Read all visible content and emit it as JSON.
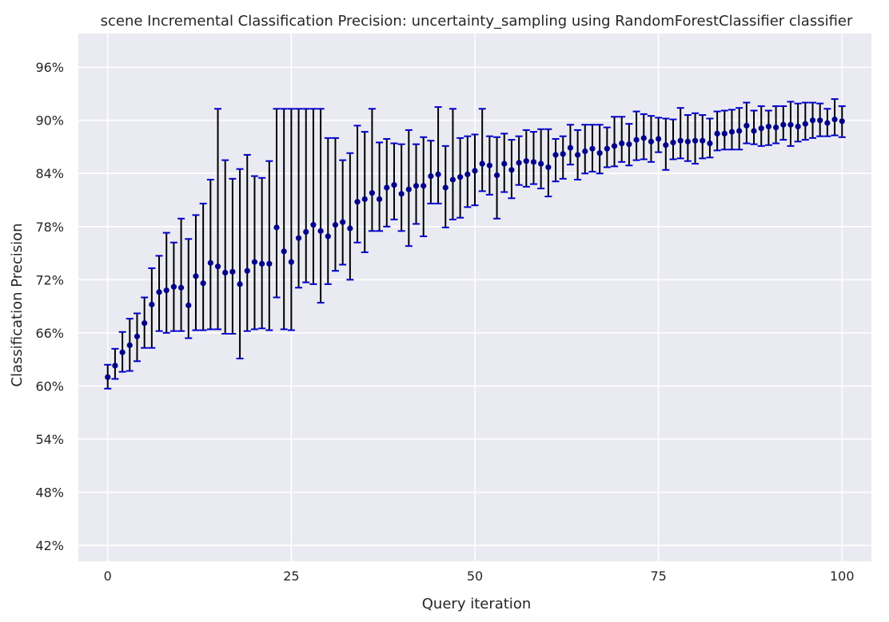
{
  "chart_data": {
    "type": "scatter",
    "title": "scene Incremental Classification Precision: uncertainty_sampling using RandomForestClassifier classifier",
    "xlabel": "Query iteration",
    "ylabel": "Classification Precision",
    "xlim": [
      -4,
      104
    ],
    "ylim": [
      40.2,
      99.8
    ],
    "xticks": [
      0,
      25,
      50,
      75,
      100
    ],
    "xtick_labels": [
      "0",
      "25",
      "50",
      "75",
      "100"
    ],
    "yticks": [
      42,
      48,
      54,
      60,
      66,
      72,
      78,
      84,
      90,
      96
    ],
    "ytick_labels": [
      "42%",
      "48%",
      "54%",
      "60%",
      "66%",
      "72%",
      "78%",
      "84%",
      "90%",
      "96%"
    ],
    "grid": true,
    "background": "#eaeaf2",
    "grid_color": "#ffffff",
    "marker_color": "#00008b",
    "errorbar_color": "#000000",
    "cap_color": "#0000cc",
    "x": [
      0,
      1,
      2,
      3,
      4,
      5,
      6,
      7,
      8,
      9,
      10,
      11,
      12,
      13,
      14,
      15,
      16,
      17,
      18,
      19,
      20,
      21,
      22,
      23,
      24,
      25,
      26,
      27,
      28,
      29,
      30,
      31,
      32,
      33,
      34,
      35,
      36,
      37,
      38,
      39,
      40,
      41,
      42,
      43,
      44,
      45,
      46,
      47,
      48,
      49,
      50,
      51,
      52,
      53,
      54,
      55,
      56,
      57,
      58,
      59,
      60,
      61,
      62,
      63,
      64,
      65,
      66,
      67,
      68,
      69,
      70,
      71,
      72,
      73,
      74,
      75,
      76,
      77,
      78,
      79,
      80,
      81,
      82,
      83,
      84,
      85,
      86,
      87,
      88,
      89,
      90,
      91,
      92,
      93,
      94,
      95,
      96,
      97,
      98,
      99,
      100
    ],
    "y": [
      61.0,
      62.3,
      63.8,
      64.6,
      65.6,
      67.1,
      69.2,
      70.6,
      70.8,
      71.2,
      71.1,
      69.1,
      72.4,
      71.6,
      73.9,
      73.5,
      72.8,
      72.9,
      71.5,
      73.0,
      74.0,
      73.8,
      73.8,
      77.9,
      75.2,
      74.0,
      76.7,
      77.4,
      78.2,
      77.5,
      76.9,
      78.2,
      78.5,
      77.8,
      80.8,
      81.1,
      81.8,
      81.1,
      82.4,
      82.7,
      81.7,
      82.2,
      82.6,
      82.6,
      83.7,
      83.9,
      82.4,
      83.3,
      83.6,
      83.9,
      84.3,
      85.1,
      84.9,
      83.8,
      85.1,
      84.4,
      85.2,
      85.4,
      85.3,
      85.1,
      84.7,
      86.1,
      86.2,
      86.9,
      86.1,
      86.5,
      86.8,
      86.3,
      86.8,
      87.1,
      87.4,
      87.3,
      87.8,
      88.0,
      87.6,
      87.9,
      87.2,
      87.5,
      87.7,
      87.6,
      87.7,
      87.7,
      87.4,
      88.5,
      88.5,
      88.7,
      88.8,
      89.4,
      88.8,
      89.1,
      89.3,
      89.2,
      89.5,
      89.5,
      89.3,
      89.6,
      90.0,
      90.0,
      89.7,
      90.1,
      89.9
    ],
    "yerr_low": [
      59.7,
      60.8,
      61.6,
      61.7,
      62.8,
      64.3,
      64.3,
      66.2,
      66.0,
      66.2,
      66.2,
      65.4,
      66.3,
      66.3,
      66.4,
      66.4,
      65.9,
      65.9,
      63.1,
      66.2,
      66.4,
      66.5,
      66.3,
      70.0,
      66.4,
      66.3,
      71.1,
      71.7,
      71.5,
      69.4,
      71.5,
      73.0,
      73.7,
      72.0,
      76.2,
      75.1,
      77.5,
      77.5,
      78.0,
      78.8,
      77.5,
      75.8,
      78.3,
      76.9,
      80.6,
      80.6,
      77.9,
      78.8,
      79.0,
      80.2,
      80.4,
      82.0,
      81.6,
      78.9,
      81.9,
      81.2,
      82.7,
      82.5,
      82.8,
      82.3,
      81.4,
      83.1,
      83.4,
      85.0,
      83.3,
      84.0,
      84.2,
      84.0,
      84.7,
      84.8,
      85.3,
      84.9,
      85.5,
      85.6,
      85.3,
      86.4,
      84.4,
      85.6,
      85.7,
      85.4,
      85.1,
      85.7,
      85.8,
      86.6,
      86.7,
      86.7,
      86.7,
      87.4,
      87.3,
      87.1,
      87.2,
      87.4,
      87.8,
      87.1,
      87.6,
      87.8,
      88.0,
      88.2,
      88.2,
      88.3,
      88.1
    ],
    "yerr_high": [
      62.4,
      64.2,
      66.1,
      67.6,
      68.2,
      70.0,
      73.3,
      74.7,
      77.3,
      76.2,
      78.9,
      76.6,
      79.3,
      80.6,
      83.3,
      91.3,
      85.5,
      83.4,
      84.5,
      86.1,
      83.7,
      83.5,
      85.4,
      91.3,
      91.3,
      91.3,
      91.3,
      91.3,
      91.3,
      91.3,
      88.0,
      88.0,
      85.5,
      86.3,
      89.4,
      88.7,
      91.3,
      87.5,
      87.9,
      87.4,
      87.3,
      88.9,
      87.3,
      88.1,
      87.7,
      91.5,
      87.1,
      91.3,
      88.0,
      88.2,
      88.4,
      91.3,
      88.2,
      88.1,
      88.5,
      87.8,
      88.2,
      88.9,
      88.7,
      89.0,
      89.0,
      87.9,
      88.2,
      89.5,
      88.9,
      89.5,
      89.5,
      89.5,
      89.2,
      90.4,
      90.4,
      89.6,
      91.0,
      90.7,
      90.5,
      90.3,
      90.2,
      90.1,
      91.4,
      90.6,
      90.8,
      90.6,
      90.2,
      91.0,
      91.1,
      91.2,
      91.4,
      92.0,
      91.1,
      91.6,
      91.1,
      91.6,
      91.6,
      92.1,
      91.9,
      92.0,
      92.0,
      91.9,
      91.3,
      92.4,
      91.6
    ]
  }
}
